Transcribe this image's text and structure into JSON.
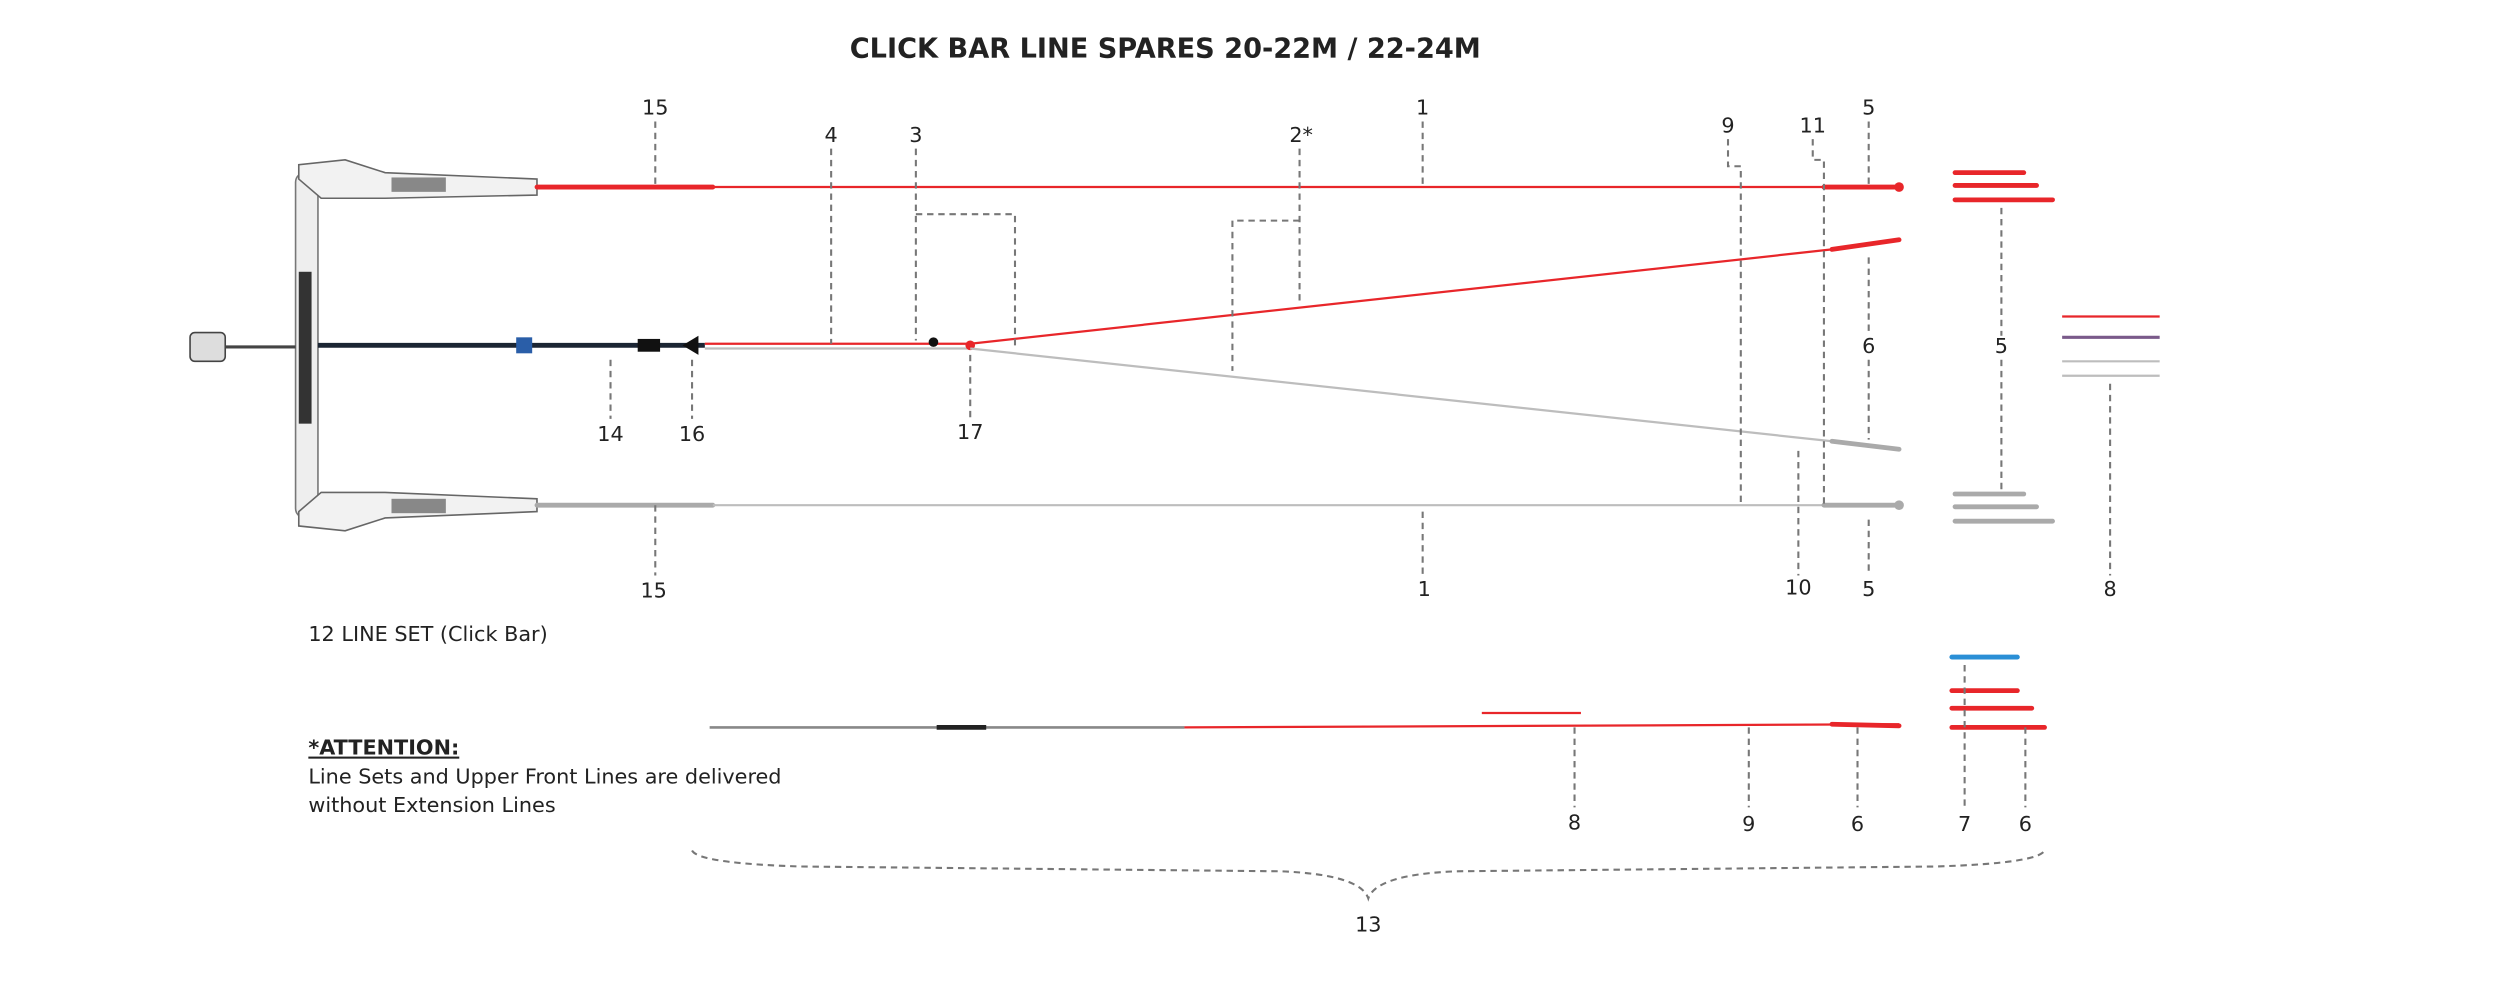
{
  "title": "CLICK BAR LINE SPARES 20-22M / 22-24M",
  "callouts": [
    "15",
    "4",
    "3",
    "2*",
    "1",
    "9",
    "11",
    "5",
    "6",
    "5",
    "14",
    "16",
    "17",
    "15",
    "1",
    "10",
    "5",
    "8",
    "8",
    "9",
    "6",
    "7",
    "6",
    "13"
  ],
  "line_set_label": "12  LINE SET (Click Bar)",
  "attention": {
    "heading": "*ATTENTION:",
    "lines": [
      "Line Sets and Upper Front Lines are delivered",
      "without Extension Lines"
    ]
  }
}
